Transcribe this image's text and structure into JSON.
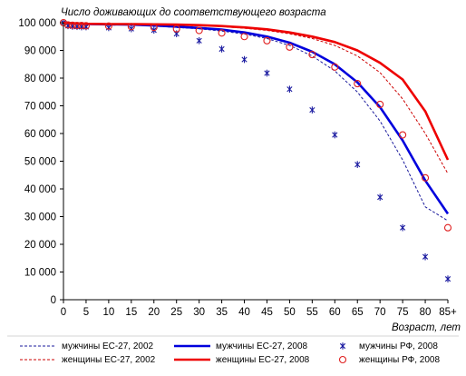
{
  "chart_data": {
    "type": "line",
    "title": "Число доживающих до соответствующего  возраста",
    "xlabel": "Возраст, лет",
    "ylabel": "",
    "x_ticks": [
      "0",
      "5",
      "10",
      "15",
      "20",
      "25",
      "30",
      "35",
      "40",
      "45",
      "50",
      "55",
      "60",
      "65",
      "70",
      "75",
      "80",
      "85+"
    ],
    "x_values": [
      0,
      5,
      10,
      15,
      20,
      25,
      30,
      35,
      40,
      45,
      50,
      55,
      60,
      65,
      70,
      75,
      80,
      85
    ],
    "y_ticks": [
      "0",
      "10 000",
      "20 000",
      "30 000",
      "40 000",
      "50 000",
      "60 000",
      "70 000",
      "80 000",
      "90 000",
      "100 000"
    ],
    "xlim": [
      0,
      85
    ],
    "ylim": [
      0,
      100000
    ],
    "grid": false,
    "legend_position": "bottom",
    "series": [
      {
        "name": "мужчины ЕС-27, 2002",
        "style": "dashed",
        "color": "#1a1a9c",
        "x": [
          0,
          5,
          10,
          15,
          20,
          25,
          30,
          35,
          40,
          45,
          50,
          55,
          60,
          65,
          70,
          75,
          80,
          85
        ],
        "y": [
          100000,
          99400,
          99300,
          99200,
          98800,
          98300,
          97800,
          97000,
          95900,
          94300,
          91800,
          88000,
          82600,
          75000,
          64500,
          50500,
          33500,
          28500
        ]
      },
      {
        "name": "мужчины ЕС-27, 2008",
        "style": "solid",
        "color": "#0000dd",
        "x": [
          0,
          5,
          10,
          15,
          20,
          25,
          30,
          35,
          40,
          45,
          50,
          55,
          60,
          65,
          70,
          75,
          80,
          85
        ],
        "y": [
          100000,
          99500,
          99400,
          99300,
          99000,
          98600,
          98100,
          97500,
          96500,
          95000,
          92800,
          89500,
          85000,
          78500,
          69500,
          57500,
          43000,
          31000
        ]
      },
      {
        "name": "мужчины РФ, 2008",
        "style": "markers",
        "marker": "asterisk",
        "color": "#1a1aa0",
        "x": [
          0,
          1,
          2,
          3,
          4,
          5,
          10,
          15,
          20,
          25,
          30,
          35,
          40,
          45,
          50,
          55,
          60,
          65,
          70,
          75,
          80,
          85
        ],
        "y": [
          100000,
          98900,
          98700,
          98600,
          98500,
          98500,
          98200,
          97800,
          97300,
          96000,
          93500,
          90500,
          86700,
          81800,
          76000,
          68500,
          59500,
          48800,
          37000,
          26000,
          15500,
          7500
        ]
      },
      {
        "name": "женщины ЕС-27, 2002",
        "style": "dashed",
        "color": "#cc0000",
        "x": [
          0,
          5,
          10,
          15,
          20,
          25,
          30,
          35,
          40,
          45,
          50,
          55,
          60,
          65,
          70,
          75,
          80,
          85
        ],
        "y": [
          100000,
          99500,
          99400,
          99400,
          99300,
          99100,
          98900,
          98600,
          98000,
          97200,
          96000,
          94300,
          91800,
          88000,
          82000,
          72500,
          60000,
          45500
        ]
      },
      {
        "name": "женщины ЕС-27, 2008",
        "style": "solid",
        "color": "#ee0000",
        "x": [
          0,
          5,
          10,
          15,
          20,
          25,
          30,
          35,
          40,
          45,
          50,
          55,
          60,
          65,
          70,
          75,
          80,
          85
        ],
        "y": [
          100000,
          99600,
          99500,
          99500,
          99400,
          99300,
          99100,
          98800,
          98300,
          97600,
          96500,
          95000,
          93000,
          90000,
          85500,
          79500,
          68000,
          50500
        ]
      },
      {
        "name": "женщины РФ, 2008",
        "style": "markers",
        "marker": "circle",
        "color": "#e02020",
        "x": [
          0,
          1,
          2,
          3,
          4,
          5,
          10,
          15,
          20,
          25,
          30,
          35,
          40,
          45,
          50,
          55,
          60,
          65,
          70,
          75,
          80,
          85
        ],
        "y": [
          100000,
          99200,
          99100,
          99000,
          99000,
          98900,
          98800,
          98600,
          98300,
          97800,
          97200,
          96300,
          95000,
          93500,
          91200,
          88500,
          84000,
          78000,
          70500,
          59500,
          44000,
          26000
        ]
      }
    ]
  }
}
